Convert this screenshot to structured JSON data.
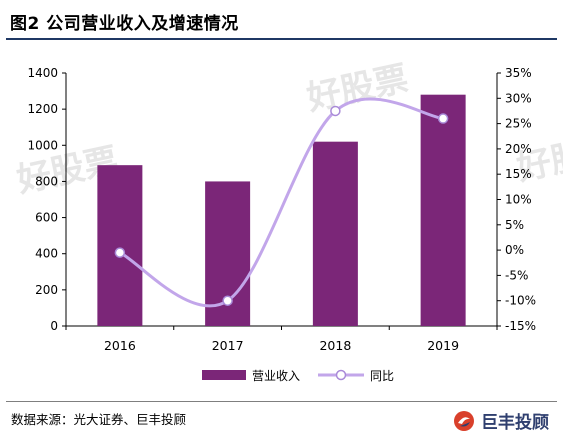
{
  "header": {
    "title": "图2 公司营业收入及增速情况"
  },
  "footer": {
    "source": "数据来源：光大证券、巨丰投顾",
    "brand": "巨丰投顾"
  },
  "watermark": {
    "text": "好股票"
  },
  "chart_data": {
    "type": "bar",
    "categories": [
      "2016",
      "2017",
      "2018",
      "2019"
    ],
    "series": [
      {
        "name": "营业收入",
        "type": "bar",
        "axis": "left",
        "values": [
          890,
          800,
          1020,
          1280
        ],
        "color": "#7b2678"
      },
      {
        "name": "同比",
        "type": "line",
        "axis": "right",
        "values": [
          -0.5,
          -10.0,
          27.5,
          26.0
        ],
        "color": "#c2a6ea",
        "smooth": true
      }
    ],
    "y_left": {
      "min": 0,
      "max": 1400,
      "ticks": [
        "0",
        "200",
        "400",
        "600",
        "800",
        "1000",
        "1200",
        "1400"
      ]
    },
    "y_right": {
      "min": -15,
      "max": 35,
      "ticks": [
        "-15%",
        "-10%",
        "-5%",
        "0%",
        "5%",
        "10%",
        "15%",
        "20%",
        "25%",
        "30%",
        "35%"
      ]
    },
    "grid": false,
    "legend": "bottom"
  }
}
